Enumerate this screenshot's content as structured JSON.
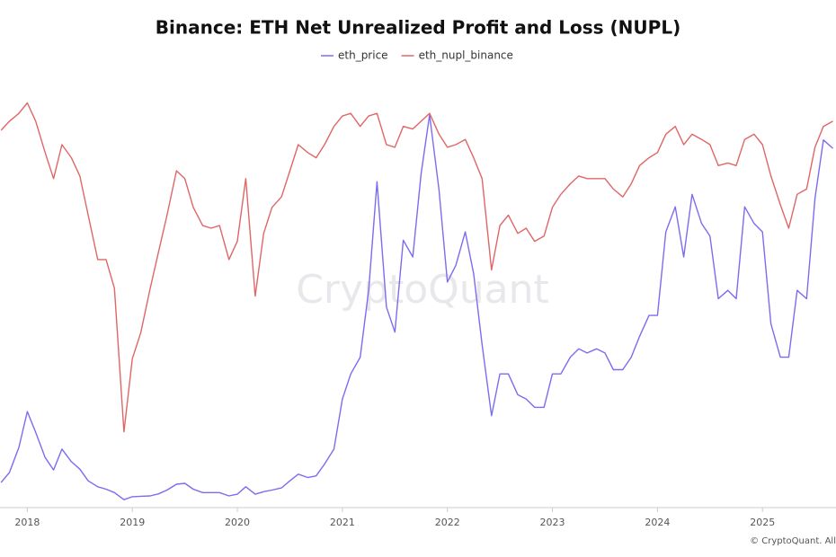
{
  "chart_data": {
    "type": "line",
    "title": "Binance: ETH Net Unrealized Profit and Loss (NUPL)",
    "watermark": "CryptoQuant",
    "footer": "© CryptoQuant. All",
    "x": [
      2017.75,
      2017.83,
      2017.92,
      2018,
      2018.08,
      2018.17,
      2018.25,
      2018.33,
      2018.42,
      2018.5,
      2018.58,
      2018.67,
      2018.75,
      2018.83,
      2018.92,
      2019,
      2019.08,
      2019.17,
      2019.25,
      2019.33,
      2019.42,
      2019.5,
      2019.58,
      2019.67,
      2019.75,
      2019.83,
      2019.92,
      2020,
      2020.08,
      2020.17,
      2020.25,
      2020.33,
      2020.42,
      2020.5,
      2020.58,
      2020.67,
      2020.75,
      2020.83,
      2020.92,
      2021,
      2021.08,
      2021.17,
      2021.25,
      2021.33,
      2021.42,
      2021.5,
      2021.58,
      2021.67,
      2021.75,
      2021.83,
      2021.92,
      2022,
      2022.08,
      2022.17,
      2022.25,
      2022.33,
      2022.42,
      2022.5,
      2022.58,
      2022.67,
      2022.75,
      2022.83,
      2022.92,
      2023,
      2023.08,
      2023.17,
      2023.25,
      2023.33,
      2023.42,
      2023.5,
      2023.58,
      2023.67,
      2023.75,
      2023.83,
      2023.92,
      2024,
      2024.08,
      2024.17,
      2024.25,
      2024.33,
      2024.42,
      2024.5,
      2024.58,
      2024.67,
      2024.75,
      2024.83,
      2024.92,
      2025,
      2025.08,
      2025.17,
      2025.25,
      2025.33,
      2025.42,
      2025.5,
      2025.58,
      2025.67
    ],
    "xlim": [
      2017.74,
      2025.7
    ],
    "xticks": [
      2018,
      2019,
      2020,
      2021,
      2022,
      2023,
      2024,
      2025
    ],
    "ylim": [
      0,
      5000
    ],
    "y2lim": [
      -0.9,
      0.7
    ],
    "series": [
      {
        "name": "eth_price",
        "color": "#7b6cf0",
        "axis": "y",
        "values": [
          300,
          420,
          720,
          1150,
          900,
          600,
          450,
          700,
          550,
          460,
          320,
          250,
          220,
          180,
          95,
          130,
          135,
          140,
          165,
          210,
          280,
          290,
          220,
          180,
          180,
          180,
          140,
          160,
          250,
          160,
          190,
          210,
          235,
          320,
          400,
          360,
          380,
          520,
          700,
          1300,
          1600,
          1800,
          2600,
          3900,
          2400,
          2100,
          3200,
          3000,
          4000,
          4700,
          3800,
          2700,
          2900,
          3300,
          2800,
          1950,
          1100,
          1600,
          1600,
          1350,
          1300,
          1200,
          1200,
          1600,
          1600,
          1800,
          1900,
          1850,
          1900,
          1850,
          1650,
          1650,
          1800,
          2050,
          2300,
          2300,
          3300,
          3600,
          3000,
          3750,
          3400,
          3250,
          2500,
          2600,
          2500,
          3600,
          3400,
          3300,
          2200,
          1800,
          1800,
          2600,
          2500,
          3700,
          4400,
          4300
        ]
      },
      {
        "name": "eth_nupl_binance",
        "color": "#e06666",
        "axis": "y2",
        "values": [
          0.545,
          0.58,
          0.61,
          0.65,
          0.58,
          0.46,
          0.36,
          0.49,
          0.44,
          0.37,
          0.22,
          0.05,
          0.05,
          -0.06,
          -0.61,
          -0.33,
          -0.23,
          -0.06,
          0.08,
          0.22,
          0.39,
          0.36,
          0.25,
          0.18,
          0.17,
          0.18,
          0.05,
          0.12,
          0.36,
          -0.09,
          0.15,
          0.25,
          0.29,
          0.39,
          0.49,
          0.46,
          0.44,
          0.49,
          0.56,
          0.6,
          0.61,
          0.56,
          0.6,
          0.61,
          0.49,
          0.48,
          0.56,
          0.55,
          0.58,
          0.61,
          0.53,
          0.48,
          0.49,
          0.51,
          0.44,
          0.36,
          0.01,
          0.18,
          0.22,
          0.15,
          0.17,
          0.12,
          0.14,
          0.25,
          0.3,
          0.34,
          0.37,
          0.36,
          0.36,
          0.36,
          0.32,
          0.29,
          0.34,
          0.41,
          0.44,
          0.46,
          0.53,
          0.56,
          0.49,
          0.53,
          0.51,
          0.49,
          0.41,
          0.42,
          0.41,
          0.51,
          0.53,
          0.49,
          0.37,
          0.26,
          0.17,
          0.3,
          0.32,
          0.48,
          0.56,
          0.58
        ]
      }
    ]
  }
}
